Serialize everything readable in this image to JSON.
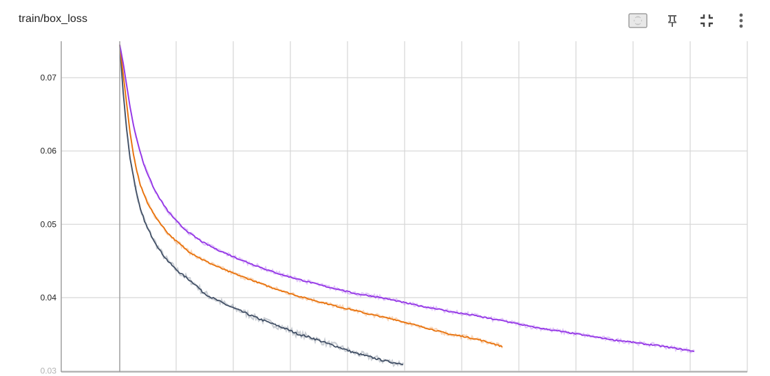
{
  "card": {
    "title": "train/box_loss",
    "toolbar": [
      {
        "name": "fit-domain-button",
        "icon": "fit-to-domain-icon"
      },
      {
        "name": "pin-button",
        "icon": "pin-icon"
      },
      {
        "name": "collapse-button",
        "icon": "collapse-icon"
      },
      {
        "name": "more-options-button",
        "icon": "more-vertical-icon"
      }
    ]
  },
  "chart_data": {
    "type": "line",
    "title": "train/box_loss",
    "xlabel": "",
    "ylabel": "",
    "y_ticks": [
      {
        "value": 0.07,
        "label": "0.07"
      },
      {
        "value": 0.06,
        "label": "0.06"
      },
      {
        "value": 0.05,
        "label": "0.05"
      },
      {
        "value": 0.04,
        "label": "0.04"
      },
      {
        "value": 0.03,
        "label": "0.03"
      }
    ],
    "ylim": [
      0.0299,
      0.0745
    ],
    "grid": true,
    "smoothing_shadow": true,
    "series": [
      {
        "color": "#425066",
        "points": [
          [
            0,
            0.0745
          ],
          [
            5,
            0.068
          ],
          [
            10,
            0.063
          ],
          [
            15,
            0.059
          ],
          [
            20,
            0.0565
          ],
          [
            25,
            0.054
          ],
          [
            30,
            0.052
          ],
          [
            40,
            0.0495
          ],
          [
            50,
            0.0478
          ],
          [
            60,
            0.0462
          ],
          [
            70,
            0.045
          ],
          [
            80,
            0.044
          ],
          [
            90,
            0.0432
          ],
          [
            100,
            0.0425
          ],
          [
            110,
            0.0418
          ],
          [
            120,
            0.0408
          ],
          [
            130,
            0.0402
          ],
          [
            140,
            0.0397
          ],
          [
            160,
            0.0388
          ],
          [
            180,
            0.038
          ],
          [
            200,
            0.0372
          ],
          [
            220,
            0.0365
          ],
          [
            240,
            0.0358
          ],
          [
            260,
            0.035
          ],
          [
            280,
            0.0345
          ],
          [
            300,
            0.0338
          ],
          [
            320,
            0.0332
          ],
          [
            340,
            0.0325
          ],
          [
            360,
            0.032
          ],
          [
            380,
            0.0315
          ],
          [
            400,
            0.0311
          ],
          [
            412,
            0.031
          ]
        ]
      },
      {
        "color": "#e8710a",
        "points": [
          [
            0,
            0.0745
          ],
          [
            5,
            0.0705
          ],
          [
            10,
            0.0665
          ],
          [
            15,
            0.0625
          ],
          [
            20,
            0.0595
          ],
          [
            25,
            0.0572
          ],
          [
            30,
            0.0553
          ],
          [
            40,
            0.053
          ],
          [
            50,
            0.0513
          ],
          [
            60,
            0.05
          ],
          [
            70,
            0.0488
          ],
          [
            80,
            0.0479
          ],
          [
            90,
            0.0471
          ],
          [
            100,
            0.0463
          ],
          [
            120,
            0.0452
          ],
          [
            140,
            0.0443
          ],
          [
            160,
            0.0435
          ],
          [
            180,
            0.0428
          ],
          [
            200,
            0.0421
          ],
          [
            220,
            0.0414
          ],
          [
            240,
            0.0408
          ],
          [
            260,
            0.0402
          ],
          [
            280,
            0.0397
          ],
          [
            300,
            0.0392
          ],
          [
            320,
            0.0387
          ],
          [
            340,
            0.0383
          ],
          [
            360,
            0.0378
          ],
          [
            380,
            0.0374
          ],
          [
            400,
            0.037
          ],
          [
            420,
            0.0365
          ],
          [
            440,
            0.036
          ],
          [
            460,
            0.0355
          ],
          [
            480,
            0.035
          ],
          [
            500,
            0.0347
          ],
          [
            520,
            0.0343
          ],
          [
            540,
            0.0338
          ],
          [
            550,
            0.0335
          ],
          [
            556,
            0.0333
          ]
        ]
      },
      {
        "color": "#9334e6",
        "points": [
          [
            0,
            0.0745
          ],
          [
            5,
            0.072
          ],
          [
            10,
            0.069
          ],
          [
            15,
            0.066
          ],
          [
            20,
            0.0635
          ],
          [
            25,
            0.0615
          ],
          [
            30,
            0.0598
          ],
          [
            35,
            0.0582
          ],
          [
            40,
            0.057
          ],
          [
            50,
            0.0548
          ],
          [
            60,
            0.0532
          ],
          [
            70,
            0.0518
          ],
          [
            80,
            0.0507
          ],
          [
            90,
            0.0497
          ],
          [
            100,
            0.0489
          ],
          [
            120,
            0.0476
          ],
          [
            140,
            0.0466
          ],
          [
            160,
            0.0458
          ],
          [
            180,
            0.045
          ],
          [
            200,
            0.0443
          ],
          [
            220,
            0.0436
          ],
          [
            240,
            0.043
          ],
          [
            260,
            0.0425
          ],
          [
            280,
            0.042
          ],
          [
            300,
            0.0415
          ],
          [
            320,
            0.0411
          ],
          [
            340,
            0.0406
          ],
          [
            360,
            0.0403
          ],
          [
            380,
            0.04
          ],
          [
            400,
            0.0396
          ],
          [
            420,
            0.0392
          ],
          [
            440,
            0.0388
          ],
          [
            460,
            0.0385
          ],
          [
            480,
            0.0381
          ],
          [
            500,
            0.0378
          ],
          [
            520,
            0.0375
          ],
          [
            540,
            0.0371
          ],
          [
            560,
            0.0368
          ],
          [
            580,
            0.0364
          ],
          [
            600,
            0.036
          ],
          [
            620,
            0.0357
          ],
          [
            640,
            0.0354
          ],
          [
            660,
            0.0351
          ],
          [
            680,
            0.0348
          ],
          [
            700,
            0.0345
          ],
          [
            720,
            0.0342
          ],
          [
            740,
            0.034
          ],
          [
            760,
            0.0337
          ],
          [
            780,
            0.0335
          ],
          [
            800,
            0.0332
          ],
          [
            820,
            0.0329
          ],
          [
            835,
            0.0327
          ]
        ]
      }
    ]
  }
}
